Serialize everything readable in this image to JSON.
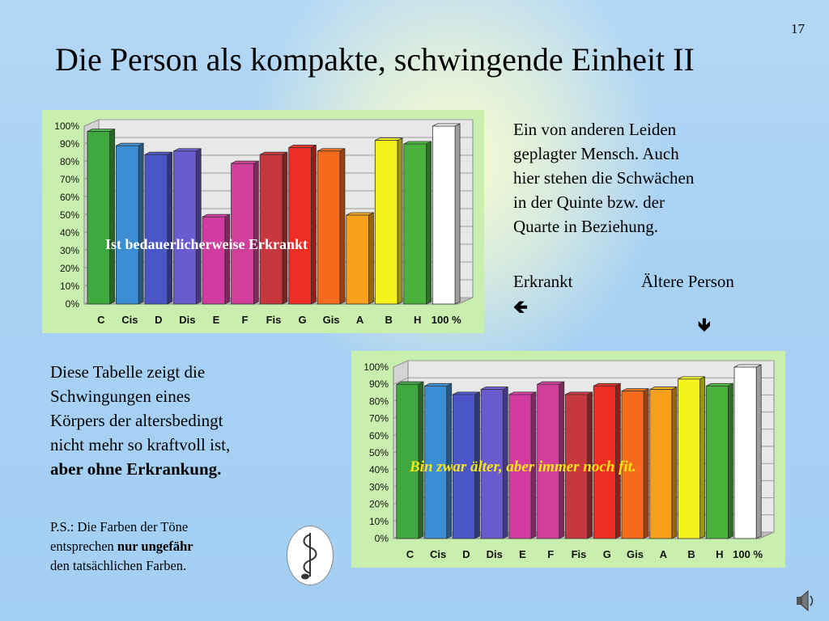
{
  "slide": {
    "number": "17",
    "title": "Die Person als kompakte, schwingende Einheit II"
  },
  "right_text": {
    "paragraph": [
      "Ein von anderen Leiden",
      "geplagter Mensch. Auch",
      "hier stehen die Schwächen",
      "in der Quinte bzw. der",
      "Quarte in Beziehung."
    ],
    "label_left": "Erkrankt",
    "label_right": "Ältere Person",
    "arrow_left_icon": "arrow-left-icon",
    "arrow_down_icon": "arrow-down-icon"
  },
  "left_text": {
    "lines": [
      "Diese Tabelle zeigt die",
      "Schwingungen eines",
      "Körpers der altersbedingt",
      "nicht mehr so kraftvoll ist,"
    ],
    "bold_line": "aber ohne Erkrankung."
  },
  "ps": {
    "line1": "P.S.: Die Farben der Töne",
    "line2_prefix": "entsprechen ",
    "line2_bold": "nur ungefähr",
    "line3": "den tatsächlichen Farben."
  },
  "icons": {
    "emblem": "music-staff-emblem-icon",
    "speaker": "speaker-icon"
  },
  "chart_data": [
    {
      "type": "bar",
      "categories": [
        "C",
        "Cis",
        "D",
        "Dis",
        "E",
        "F",
        "Fis",
        "G",
        "Gis",
        "A",
        "B",
        "H",
        "100 %"
      ],
      "values": [
        97,
        89,
        84,
        86,
        49,
        79,
        84,
        88,
        86,
        50,
        92,
        90,
        100
      ],
      "colors": [
        "#3fa83f",
        "#3b8ed4",
        "#4a55c8",
        "#6a5ad0",
        "#d23ca0",
        "#d0409a",
        "#c8363e",
        "#ee2e24",
        "#f56a1c",
        "#f7a11a",
        "#f6f21e",
        "#4ab23c",
        "#ffffff"
      ],
      "ylim": [
        0,
        100
      ],
      "ytick_labels": [
        "0%",
        "10%",
        "20%",
        "30%",
        "40%",
        "50%",
        "60%",
        "70%",
        "80%",
        "90%",
        "100%"
      ],
      "annotation": "Ist bedauerlicherweise Erkrankt",
      "annotation_color": "#ffffff",
      "grid": true
    },
    {
      "type": "bar",
      "categories": [
        "C",
        "Cis",
        "D",
        "Dis",
        "E",
        "F",
        "Fis",
        "G",
        "Gis",
        "A",
        "B",
        "H",
        "100 %"
      ],
      "values": [
        90,
        89,
        84,
        87,
        84,
        90,
        84,
        89,
        86,
        87,
        93,
        89,
        100
      ],
      "colors": [
        "#3fa83f",
        "#3b8ed4",
        "#4a55c8",
        "#6a5ad0",
        "#d23ca0",
        "#d0409a",
        "#c8363e",
        "#ee2e24",
        "#f56a1c",
        "#f7a11a",
        "#f6f21e",
        "#4ab23c",
        "#ffffff"
      ],
      "ylim": [
        0,
        100
      ],
      "ytick_labels": [
        "0%",
        "10%",
        "20%",
        "30%",
        "40%",
        "50%",
        "60%",
        "70%",
        "80%",
        "90%",
        "100%"
      ],
      "annotation": "Bin zwar älter, aber immer noch fit.",
      "annotation_color": "#f5e612",
      "grid": true
    }
  ]
}
